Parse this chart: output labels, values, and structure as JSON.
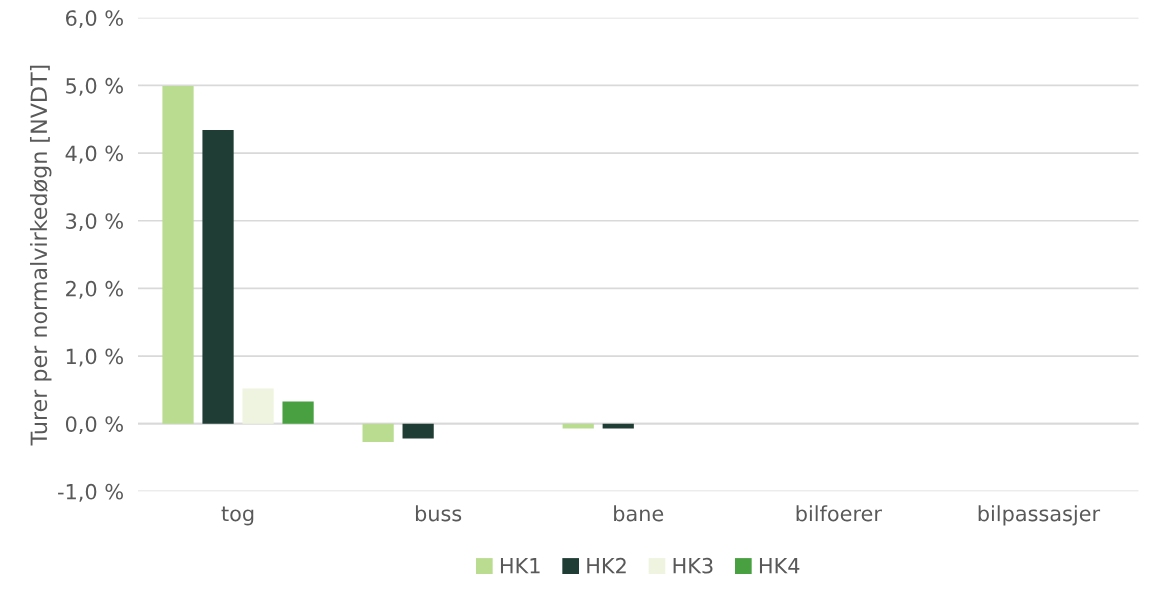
{
  "chart_data": {
    "type": "bar",
    "ylabel": "Turer per normalvirkedøgn [NVDT]",
    "categories": [
      "tog",
      "buss",
      "bane",
      "bilfoerer",
      "bilpassasjer"
    ],
    "series": [
      {
        "name": "HK1",
        "color": "#b9dc91",
        "values": [
          4.99,
          -0.27,
          -0.07,
          0,
          0
        ]
      },
      {
        "name": "HK2",
        "color": "#1f3d34",
        "values": [
          4.34,
          -0.22,
          -0.07,
          0,
          null
        ]
      },
      {
        "name": "HK3",
        "color": "#eff4e1",
        "values": [
          0.52,
          0,
          0,
          0,
          0
        ]
      },
      {
        "name": "HK4",
        "color": "#48a040",
        "values": [
          0.33,
          null,
          0,
          0,
          0
        ]
      }
    ],
    "ylim": [
      -1.0,
      6.0
    ],
    "yticks": [
      {
        "value": -1,
        "label": "-1,0 %"
      },
      {
        "value": 0,
        "label": "0,0 %"
      },
      {
        "value": 1,
        "label": "1,0 %"
      },
      {
        "value": 2,
        "label": "2,0 %"
      },
      {
        "value": 3,
        "label": "3,0 %"
      },
      {
        "value": 4,
        "label": "4,0 %"
      },
      {
        "value": 5,
        "label": "5,0 %"
      },
      {
        "value": 6,
        "label": "6,0 %"
      }
    ],
    "grid": "y",
    "legend": "bottom"
  }
}
